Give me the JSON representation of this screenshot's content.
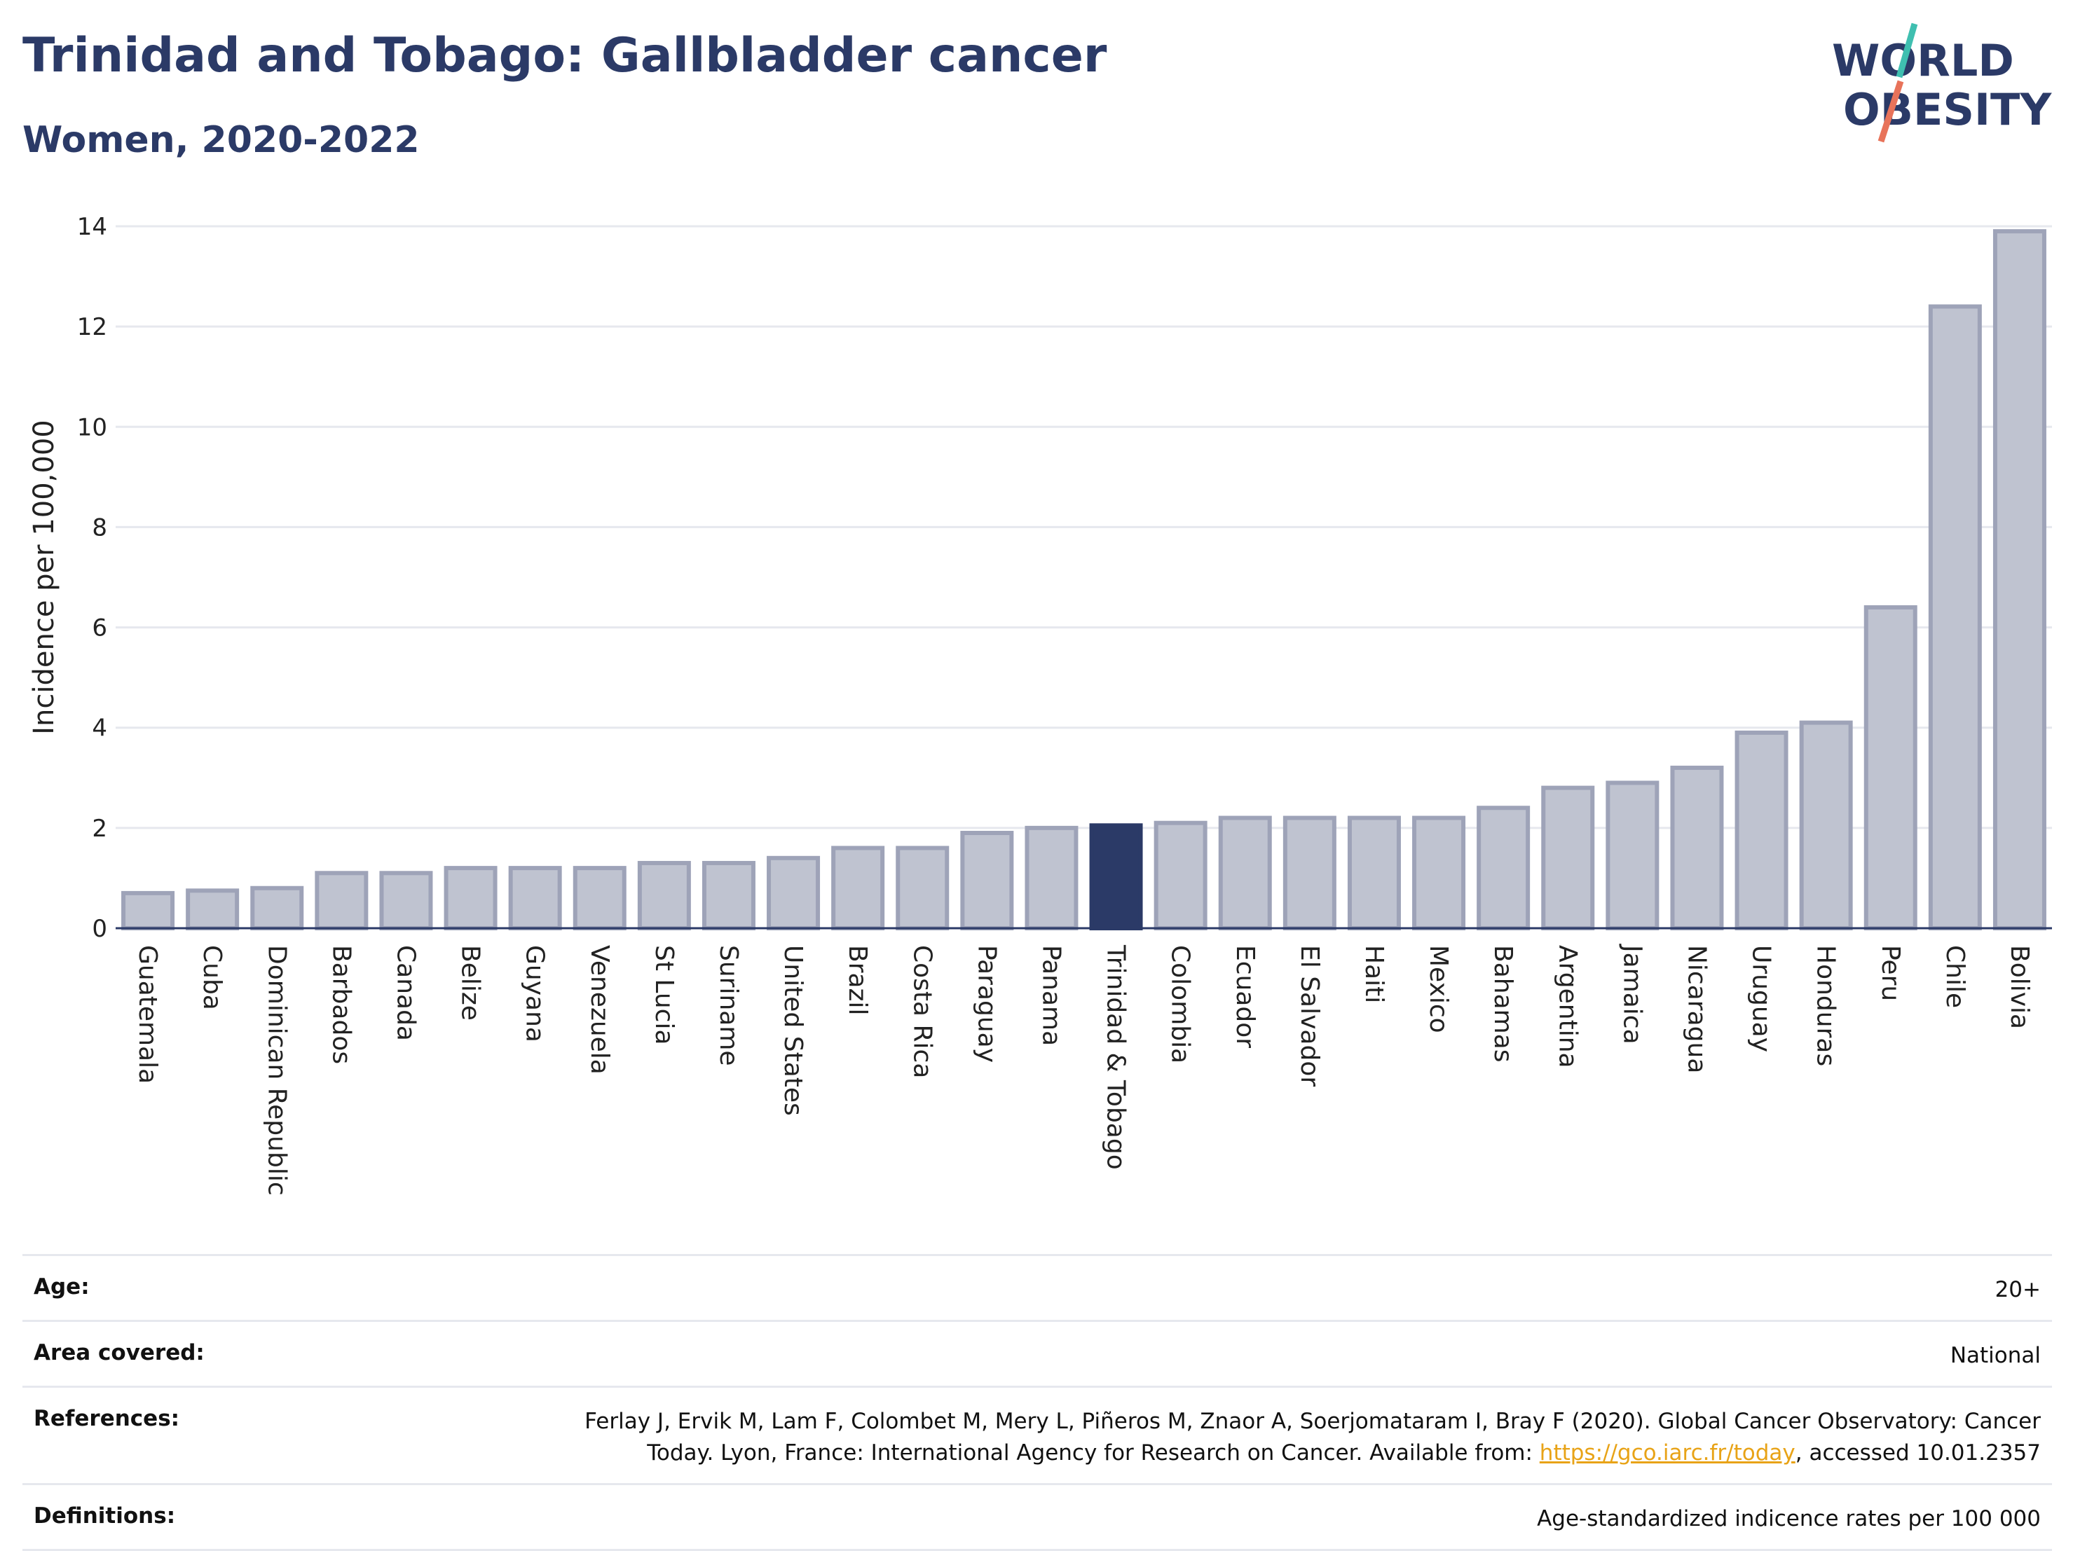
{
  "header": {
    "title": "Trinidad and Tobago: Gallbladder cancer",
    "subtitle": "Women, 2020-2022"
  },
  "logo": {
    "line1": "WORLD",
    "line2": "OBESITY",
    "colors": {
      "text": "#2b3a67",
      "slash_top": "#3fbfb0",
      "slash_bottom": "#e8735a"
    }
  },
  "colors": {
    "bar": "#bfc3d0",
    "bar_stroke": "#9ea3b8",
    "highlight": "#2b3a67",
    "grid": "#e6e8ee",
    "axis": "#2b3a67"
  },
  "chart_data": {
    "type": "bar",
    "ylabel": "Incidence per 100,000",
    "ylim": [
      0,
      14
    ],
    "yticks": [
      "0",
      "2",
      "4",
      "6",
      "8",
      "10",
      "12",
      "14"
    ],
    "grid": true,
    "highlight_category": "Trinidad & Tobago",
    "categories": [
      "Guatemala",
      "Cuba",
      "Dominican Republic",
      "Barbados",
      "Canada",
      "Belize",
      "Guyana",
      "Venezuela",
      "St Lucia",
      "Suriname",
      "United States",
      "Brazil",
      "Costa Rica",
      "Paraguay",
      "Panama",
      "Trinidad & Tobago",
      "Colombia",
      "Ecuador",
      "El Salvador",
      "Haiti",
      "Mexico",
      "Bahamas",
      "Argentina",
      "Jamaica",
      "Nicaragua",
      "Uruguay",
      "Honduras",
      "Peru",
      "Chile",
      "Bolivia"
    ],
    "values": [
      0.7,
      0.75,
      0.8,
      1.1,
      1.1,
      1.2,
      1.2,
      1.2,
      1.3,
      1.3,
      1.4,
      1.6,
      1.6,
      1.9,
      2.0,
      2.05,
      2.1,
      2.2,
      2.2,
      2.2,
      2.2,
      2.4,
      2.8,
      2.9,
      3.2,
      3.9,
      4.1,
      6.4,
      12.4,
      13.9
    ]
  },
  "info": {
    "age_label": "Age:",
    "age_value": "20+",
    "area_label": "Area covered:",
    "area_value": "National",
    "references_label": "References:",
    "references_line1": "Ferlay J, Ervik M, Lam F, Colombet M, Mery L, Piñeros M, Znaor A, Soerjomataram I, Bray F (2020). Global Cancer Observatory: Cancer",
    "references_line2_pre": "Today. Lyon, France: International Agency for Research on Cancer. Available from: ",
    "references_link": "https://gco.iarc.fr/today",
    "references_line2_post": ", accessed 10.01.2357",
    "definitions_label": "Definitions:",
    "definitions_value": "Age-standardized indicence rates per 100 000"
  }
}
